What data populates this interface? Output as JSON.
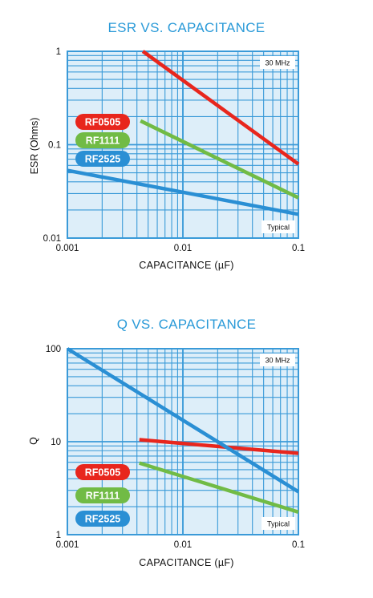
{
  "colors": {
    "title": "#2a9ad8",
    "plot_bg": "#ddeef9",
    "grid": "#3a9ad8",
    "RF0505": "#e8261d",
    "RF1111": "#71bb45",
    "RF2525": "#2a8fd4"
  },
  "chart_data": [
    {
      "type": "line",
      "title": "ESR VS. CAPACITANCE",
      "xlabel": "CAPACITANCE (µF)",
      "ylabel": "ESR (Ohms)",
      "x_scale": "log",
      "y_scale": "log",
      "xlim": [
        0.001,
        0.1
      ],
      "ylim": [
        0.01,
        1
      ],
      "x_ticks": [
        "0.001",
        "0.01",
        "0.1"
      ],
      "y_ticks": [
        "0.01",
        "0.1",
        "1"
      ],
      "grid": true,
      "legend_position": "left",
      "annotations": [
        "30 MHz",
        "Typical"
      ],
      "series": [
        {
          "name": "RF0505",
          "x": [
            0.0045,
            0.1
          ],
          "y": [
            1.0,
            0.062
          ]
        },
        {
          "name": "RF1111",
          "x": [
            0.0043,
            0.1
          ],
          "y": [
            0.18,
            0.027
          ]
        },
        {
          "name": "RF2525",
          "x": [
            0.001,
            0.01,
            0.1
          ],
          "y": [
            0.053,
            0.031,
            0.018
          ]
        }
      ]
    },
    {
      "type": "line",
      "title": "Q VS. CAPACITANCE",
      "xlabel": "CAPACITANCE (µF)",
      "ylabel": "Q",
      "x_scale": "log",
      "y_scale": "log",
      "xlim": [
        0.001,
        0.1
      ],
      "ylim": [
        1,
        100
      ],
      "x_ticks": [
        "0.001",
        "0.01",
        "0.1"
      ],
      "y_ticks": [
        "1",
        "10",
        "100"
      ],
      "grid": true,
      "legend_position": "bottom-left",
      "annotations": [
        "30 MHz",
        "Typical"
      ],
      "series": [
        {
          "name": "RF0505",
          "x": [
            0.0042,
            0.1
          ],
          "y": [
            10.5,
            7.5
          ]
        },
        {
          "name": "RF1111",
          "x": [
            0.0042,
            0.1
          ],
          "y": [
            5.9,
            1.75
          ]
        },
        {
          "name": "RF2525",
          "x": [
            0.001,
            0.1
          ],
          "y": [
            100,
            2.9
          ]
        }
      ]
    }
  ]
}
